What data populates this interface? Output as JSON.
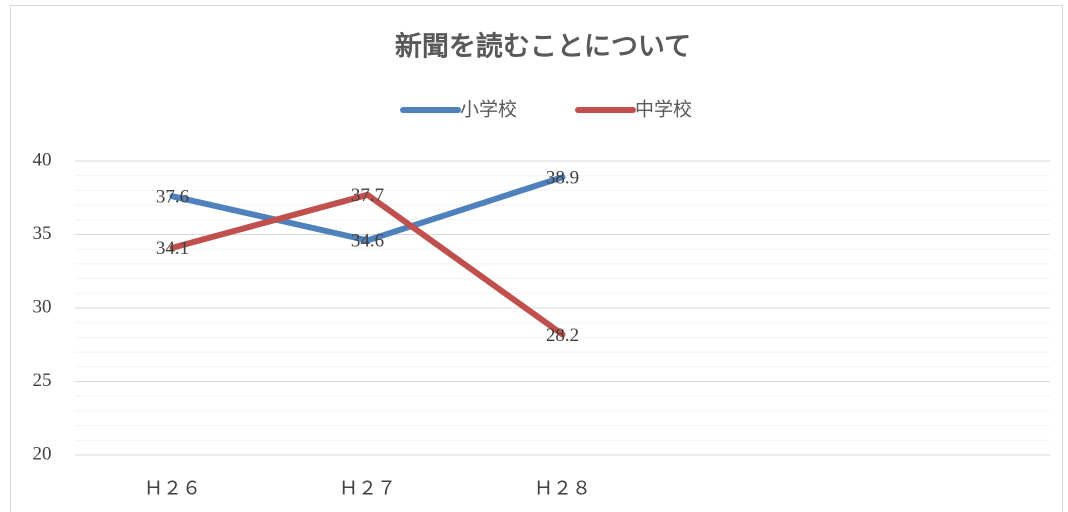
{
  "chart_data": {
    "type": "line",
    "title": "新聞を読むことについて",
    "categories": [
      "Ｈ２６",
      "Ｈ２７",
      "Ｈ２８",
      null,
      null
    ],
    "series": [
      {
        "name": "小学校",
        "color": "#4f81bd",
        "values": [
          37.6,
          34.6,
          38.9,
          null,
          null
        ]
      },
      {
        "name": "中学校",
        "color": "#c0504d",
        "values": [
          34.1,
          37.7,
          28.2,
          null,
          null
        ]
      }
    ],
    "ylim": [
      20,
      40
    ],
    "yticks": [
      20,
      25,
      30,
      35,
      40
    ],
    "minor_yticks": [
      21,
      22,
      23,
      24,
      26,
      27,
      28,
      29,
      31,
      32,
      33,
      34,
      36,
      37,
      38,
      39
    ],
    "grid": true,
    "legend": "top",
    "data_labels": true
  }
}
